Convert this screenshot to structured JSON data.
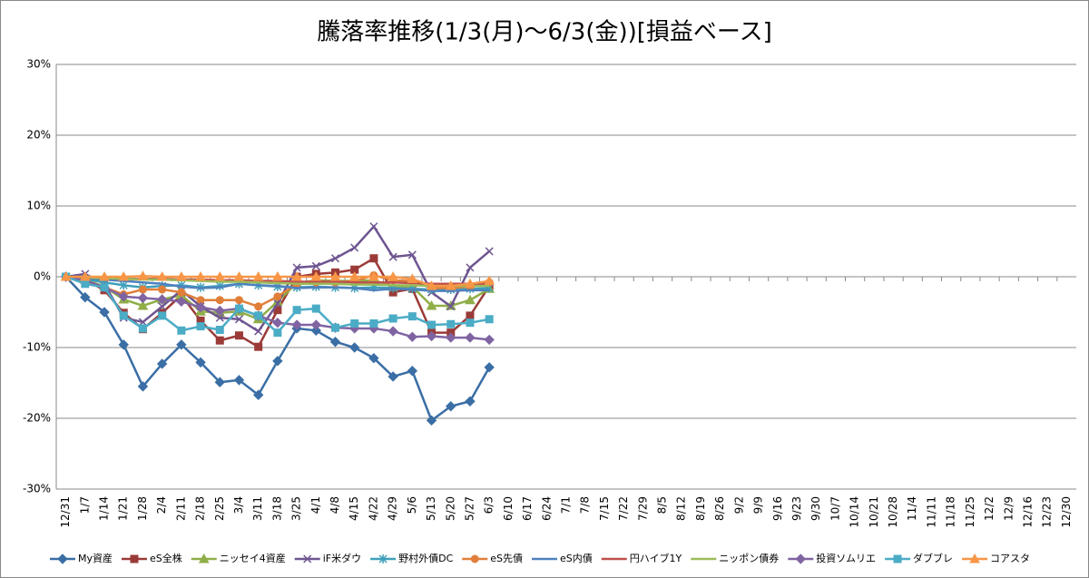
{
  "chart_data": {
    "type": "line",
    "title": "騰落率推移(1/3(月)～6/3(金))[損益ベース]",
    "categories": [
      "12/31",
      "1/7",
      "1/14",
      "1/21",
      "1/28",
      "2/4",
      "2/11",
      "2/18",
      "2/25",
      "3/4",
      "3/11",
      "3/18",
      "3/25",
      "4/1",
      "4/8",
      "4/15",
      "4/22",
      "4/29",
      "5/6",
      "5/13",
      "5/20",
      "5/27",
      "6/3",
      "6/10",
      "6/17",
      "6/24",
      "7/1",
      "7/8",
      "7/15",
      "7/22",
      "7/29",
      "8/5",
      "8/12",
      "8/19",
      "8/26",
      "9/2",
      "9/9",
      "9/16",
      "9/23",
      "9/30",
      "10/7",
      "10/14",
      "10/21",
      "10/28",
      "11/4",
      "11/11",
      "11/18",
      "11/25",
      "12/2",
      "12/9",
      "12/16",
      "12/23",
      "12/30"
    ],
    "ylim": [
      -30,
      30
    ],
    "yticks": [
      {
        "value": -30,
        "label": "-30%"
      },
      {
        "value": -20,
        "label": "-20%"
      },
      {
        "value": -10,
        "label": "-10%"
      },
      {
        "value": 0,
        "label": "0%"
      },
      {
        "value": 10,
        "label": "10%"
      },
      {
        "value": 20,
        "label": "20%"
      },
      {
        "value": 30,
        "label": "30%"
      }
    ],
    "grid": true,
    "legend": "bottom",
    "series": [
      {
        "name": "My資産",
        "color": "#3a6ea5",
        "marker": "diamond",
        "values": [
          0,
          -2.9,
          -5.0,
          -9.6,
          -15.5,
          -12.3,
          -9.6,
          -12.1,
          -14.9,
          -14.6,
          -16.7,
          -11.9,
          -7.3,
          -7.6,
          -9.2,
          -10.0,
          -11.5,
          -14.1,
          -13.3,
          -20.3,
          -18.3,
          -17.6,
          -12.8,
          null,
          null,
          null,
          null,
          null,
          null,
          null,
          null,
          null,
          null,
          null,
          null,
          null,
          null,
          null,
          null,
          null,
          null,
          null,
          null,
          null,
          null,
          null,
          null,
          null,
          null,
          null,
          null,
          null,
          null
        ]
      },
      {
        "name": "eS全株",
        "color": "#9b3b38",
        "marker": "square",
        "values": [
          0,
          -0.4,
          -1.9,
          -5.1,
          -7.4,
          -5.1,
          -2.6,
          -6.2,
          -9.0,
          -8.3,
          -9.9,
          -4.7,
          0,
          0.4,
          0.6,
          1.0,
          2.6,
          -2.2,
          -1.7,
          -7.9,
          -7.9,
          -5.5,
          -1.3,
          null,
          null,
          null,
          null,
          null,
          null,
          null,
          null,
          null,
          null,
          null,
          null,
          null,
          null,
          null,
          null,
          null,
          null,
          null,
          null,
          null,
          null,
          null,
          null,
          null,
          null,
          null,
          null,
          null,
          null
        ]
      },
      {
        "name": "ニッセイ4資産",
        "color": "#8fae48",
        "marker": "triangle",
        "values": [
          0,
          -0.4,
          -1.4,
          -3.2,
          -4.1,
          -3.2,
          -2.6,
          -4.9,
          -5.1,
          -4.9,
          -6.0,
          -3.5,
          -0.9,
          -0.5,
          -0.6,
          -0.6,
          -0.5,
          -1.4,
          -1.4,
          -4.1,
          -4.1,
          -3.3,
          -1.7,
          null,
          null,
          null,
          null,
          null,
          null,
          null,
          null,
          null,
          null,
          null,
          null,
          null,
          null,
          null,
          null,
          null,
          null,
          null,
          null,
          null,
          null,
          null,
          null,
          null,
          null,
          null,
          null,
          null,
          null
        ]
      },
      {
        "name": "iF米ダウ",
        "color": "#6e5591",
        "marker": "x",
        "values": [
          0,
          0.4,
          -1.0,
          -5.8,
          -6.4,
          -4.2,
          -1.9,
          -4.2,
          -5.8,
          -6.0,
          -7.7,
          -3.8,
          1.3,
          1.5,
          2.6,
          4.1,
          7.1,
          2.8,
          3.1,
          -2.2,
          -4.2,
          1.3,
          3.6,
          null,
          null,
          null,
          null,
          null,
          null,
          null,
          null,
          null,
          null,
          null,
          null,
          null,
          null,
          null,
          null,
          null,
          null,
          null,
          null,
          null,
          null,
          null,
          null,
          null,
          null,
          null,
          null,
          null,
          null
        ]
      },
      {
        "name": "野村外債DC",
        "color": "#3fa0bb",
        "marker": "star",
        "values": [
          0,
          -0.3,
          -0.8,
          -1.2,
          -1.5,
          -1.3,
          -1.2,
          -1.5,
          -1.3,
          -1.0,
          -1.2,
          -1.4,
          -1.5,
          -1.4,
          -1.5,
          -1.6,
          -1.5,
          -1.6,
          -1.7,
          -1.8,
          -1.8,
          -1.7,
          -1.6,
          null,
          null,
          null,
          null,
          null,
          null,
          null,
          null,
          null,
          null,
          null,
          null,
          null,
          null,
          null,
          null,
          null,
          null,
          null,
          null,
          null,
          null,
          null,
          null,
          null,
          null,
          null,
          null,
          null,
          null
        ]
      },
      {
        "name": "eS先債",
        "color": "#e07f3a",
        "marker": "circle",
        "values": [
          0,
          -0.8,
          -1.5,
          -2.5,
          -1.8,
          -1.8,
          -2.2,
          -3.3,
          -3.3,
          -3.3,
          -4.2,
          -2.8,
          -1.0,
          -0.8,
          -0.8,
          -0.6,
          0.2,
          -0.5,
          -0.6,
          -1.6,
          -1.6,
          -1.4,
          -0.8,
          null,
          null,
          null,
          null,
          null,
          null,
          null,
          null,
          null,
          null,
          null,
          null,
          null,
          null,
          null,
          null,
          null,
          null,
          null,
          null,
          null,
          null,
          null,
          null,
          null,
          null,
          null,
          null,
          null,
          null
        ]
      },
      {
        "name": "eS内債",
        "color": "#4f81bd",
        "marker": "none",
        "values": [
          0,
          -0.2,
          -0.4,
          -0.6,
          -0.8,
          -1.0,
          -1.4,
          -1.6,
          -1.5,
          -1.0,
          -1.2,
          -1.3,
          -1.6,
          -1.5,
          -1.5,
          -1.6,
          -1.9,
          -1.7,
          -1.8,
          -2.0,
          -2.0,
          -1.9,
          -1.9,
          null,
          null,
          null,
          null,
          null,
          null,
          null,
          null,
          null,
          null,
          null,
          null,
          null,
          null,
          null,
          null,
          null,
          null,
          null,
          null,
          null,
          null,
          null,
          null,
          null,
          null,
          null,
          null,
          null,
          null
        ]
      },
      {
        "name": "円ハイブ1Y",
        "color": "#c0504d",
        "marker": "none",
        "values": [
          0,
          -0.1,
          -0.2,
          -0.3,
          -0.3,
          -0.3,
          -0.4,
          -0.4,
          -0.5,
          -0.5,
          -0.6,
          -0.6,
          -0.7,
          -0.7,
          -0.7,
          -0.8,
          -0.8,
          -0.8,
          -0.9,
          -1.0,
          -1.0,
          -1.0,
          -1.0,
          null,
          null,
          null,
          null,
          null,
          null,
          null,
          null,
          null,
          null,
          null,
          null,
          null,
          null,
          null,
          null,
          null,
          null,
          null,
          null,
          null,
          null,
          null,
          null,
          null,
          null,
          null,
          null,
          null,
          null
        ]
      },
      {
        "name": "ニッポン債券",
        "color": "#9bbb59",
        "marker": "none",
        "values": [
          0,
          -0.1,
          -0.2,
          -0.3,
          -0.4,
          -0.4,
          -0.5,
          -0.6,
          -0.7,
          -0.7,
          -0.8,
          -0.9,
          -1.0,
          -1.0,
          -1.0,
          -1.1,
          -1.1,
          -1.2,
          -1.2,
          -1.3,
          -1.3,
          -1.3,
          -1.3,
          null,
          null,
          null,
          null,
          null,
          null,
          null,
          null,
          null,
          null,
          null,
          null,
          null,
          null,
          null,
          null,
          null,
          null,
          null,
          null,
          null,
          null,
          null,
          null,
          null,
          null,
          null,
          null,
          null,
          null
        ]
      },
      {
        "name": "投資ソムリエ",
        "color": "#8064a2",
        "marker": "diamond",
        "values": [
          0,
          -0.5,
          -1.5,
          -2.8,
          -3.0,
          -3.2,
          -3.5,
          -4.3,
          -4.8,
          -4.5,
          -5.5,
          -6.5,
          -6.8,
          -6.8,
          -7.2,
          -7.3,
          -7.3,
          -7.7,
          -8.5,
          -8.4,
          -8.6,
          -8.6,
          -8.9,
          null,
          null,
          null,
          null,
          null,
          null,
          null,
          null,
          null,
          null,
          null,
          null,
          null,
          null,
          null,
          null,
          null,
          null,
          null,
          null,
          null,
          null,
          null,
          null,
          null,
          null,
          null,
          null,
          null,
          null
        ]
      },
      {
        "name": "ダブブレ",
        "color": "#4bacc6",
        "marker": "square",
        "values": [
          0,
          -1.0,
          -1.5,
          -5.5,
          -7.3,
          -5.5,
          -7.6,
          -7.0,
          -7.5,
          -4.5,
          -5.5,
          -7.9,
          -4.7,
          -4.5,
          -7.2,
          -6.6,
          -6.6,
          -5.9,
          -5.6,
          -6.8,
          -6.7,
          -6.5,
          -6.0,
          null,
          null,
          null,
          null,
          null,
          null,
          null,
          null,
          null,
          null,
          null,
          null,
          null,
          null,
          null,
          null,
          null,
          null,
          null,
          null,
          null,
          null,
          null,
          null,
          null,
          null,
          null,
          null,
          null,
          null
        ]
      },
      {
        "name": "コアスタ",
        "color": "#f79646",
        "marker": "triangle",
        "values": [
          0,
          0,
          0,
          0,
          0.1,
          0,
          0,
          0,
          0,
          0,
          0,
          0,
          0,
          0,
          0,
          0,
          0,
          0,
          -0.3,
          -1.3,
          -1.3,
          -1.0,
          -0.6,
          null,
          null,
          null,
          null,
          null,
          null,
          null,
          null,
          null,
          null,
          null,
          null,
          null,
          null,
          null,
          null,
          null,
          null,
          null,
          null,
          null,
          null,
          null,
          null,
          null,
          null,
          null,
          null,
          null,
          null
        ]
      }
    ]
  }
}
